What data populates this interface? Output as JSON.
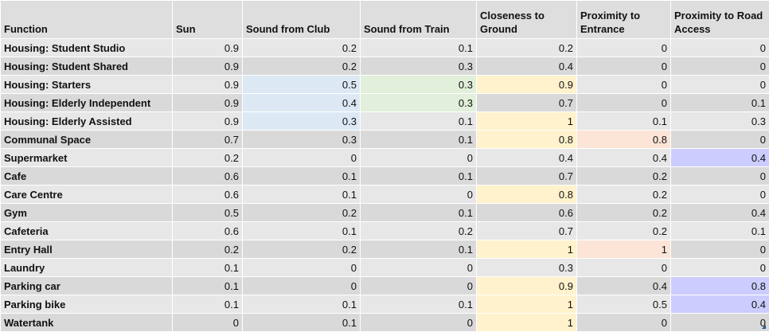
{
  "headers": [
    "Function",
    "Sun",
    "Sound from Club",
    "Sound from Train",
    "Closeness to Ground",
    "Proximity to Entrance",
    "Proximity to Road Access"
  ],
  "rows": [
    [
      "Housing: Student Studio",
      "0.9",
      "0.2",
      "0.1",
      "0.2",
      "0",
      "0"
    ],
    [
      "Housing: Student Shared",
      "0.9",
      "0.2",
      "0.3",
      "0.4",
      "0",
      "0"
    ],
    [
      "Housing: Starters",
      "0.9",
      "0.5",
      "0.3",
      "0.9",
      "0",
      "0"
    ],
    [
      "Housing: Elderly Independent",
      "0.9",
      "0.4",
      "0.3",
      "0.7",
      "0",
      "0.1"
    ],
    [
      "Housing: Elderly Assisted",
      "0.9",
      "0.3",
      "0.1",
      "1",
      "0.1",
      "0.3"
    ],
    [
      "Communal Space",
      "0.7",
      "0.3",
      "0.1",
      "0.8",
      "0.8",
      "0"
    ],
    [
      "Supermarket",
      "0.2",
      "0",
      "0",
      "0.4",
      "0.4",
      "0.4"
    ],
    [
      "Cafe",
      "0.6",
      "0.1",
      "0.1",
      "0.7",
      "0.2",
      "0"
    ],
    [
      "Care Centre",
      "0.6",
      "0.1",
      "0",
      "0.8",
      "0.2",
      "0"
    ],
    [
      "Gym",
      "0.5",
      "0.2",
      "0.1",
      "0.6",
      "0.2",
      "0.4"
    ],
    [
      "Cafeteria",
      "0.6",
      "0.1",
      "0.2",
      "0.7",
      "0.2",
      "0.1"
    ],
    [
      "Entry Hall",
      "0.2",
      "0.2",
      "0.1",
      "1",
      "1",
      "0"
    ],
    [
      "Laundry",
      "0.1",
      "0",
      "0",
      "0.3",
      "0",
      "0"
    ],
    [
      "Parking car",
      "0.1",
      "0",
      "0",
      "0.9",
      "0.4",
      "0.8"
    ],
    [
      "Parking bike",
      "0.1",
      "0.1",
      "0.1",
      "1",
      "0.5",
      "0.4"
    ],
    [
      "Watertank",
      "0",
      "0.1",
      "0",
      "1",
      "0",
      "0"
    ]
  ],
  "highlight_colors": {
    "blue": "#dce9f5",
    "green": "#e2efda",
    "yellow": "#fff2cc",
    "red": "#fce4d6",
    "purple": "#ccccff"
  },
  "highlights": [
    [
      2,
      2,
      "blue"
    ],
    [
      2,
      3,
      "green"
    ],
    [
      2,
      4,
      "yellow"
    ],
    [
      3,
      2,
      "blue"
    ],
    [
      3,
      3,
      "green"
    ],
    [
      4,
      2,
      "blue"
    ],
    [
      4,
      4,
      "yellow"
    ],
    [
      5,
      4,
      "yellow"
    ],
    [
      5,
      5,
      "red"
    ],
    [
      6,
      6,
      "purple"
    ],
    [
      8,
      4,
      "yellow"
    ],
    [
      11,
      4,
      "yellow"
    ],
    [
      11,
      5,
      "red"
    ],
    [
      13,
      4,
      "yellow"
    ],
    [
      13,
      6,
      "purple"
    ],
    [
      14,
      4,
      "yellow"
    ],
    [
      14,
      6,
      "purple"
    ],
    [
      15,
      4,
      "yellow"
    ]
  ]
}
